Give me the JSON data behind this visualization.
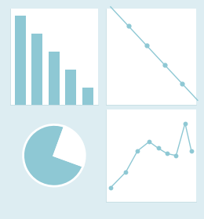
{
  "background_color": "#ddedf2",
  "panel_color": "#ffffff",
  "chart_color": "#8ec8d4",
  "border_color": "#c5dde3",
  "bar_heights": [
    5,
    4,
    3,
    2,
    1
  ],
  "line1_x": [
    0.05,
    0.25,
    0.45,
    0.65,
    0.85,
    1.02
  ],
  "line1_y": [
    1.02,
    0.82,
    0.62,
    0.42,
    0.22,
    0.05
  ],
  "pie_sizes": [
    75,
    25
  ],
  "pie_colors": [
    "#8ec8d4",
    "#ffffff"
  ],
  "pie_startangle": 70,
  "line2_x": [
    0.05,
    0.22,
    0.35,
    0.48,
    0.58,
    0.68,
    0.78,
    0.88,
    0.95
  ],
  "line2_y": [
    0.15,
    0.32,
    0.55,
    0.65,
    0.58,
    0.52,
    0.5,
    0.85,
    0.55
  ]
}
